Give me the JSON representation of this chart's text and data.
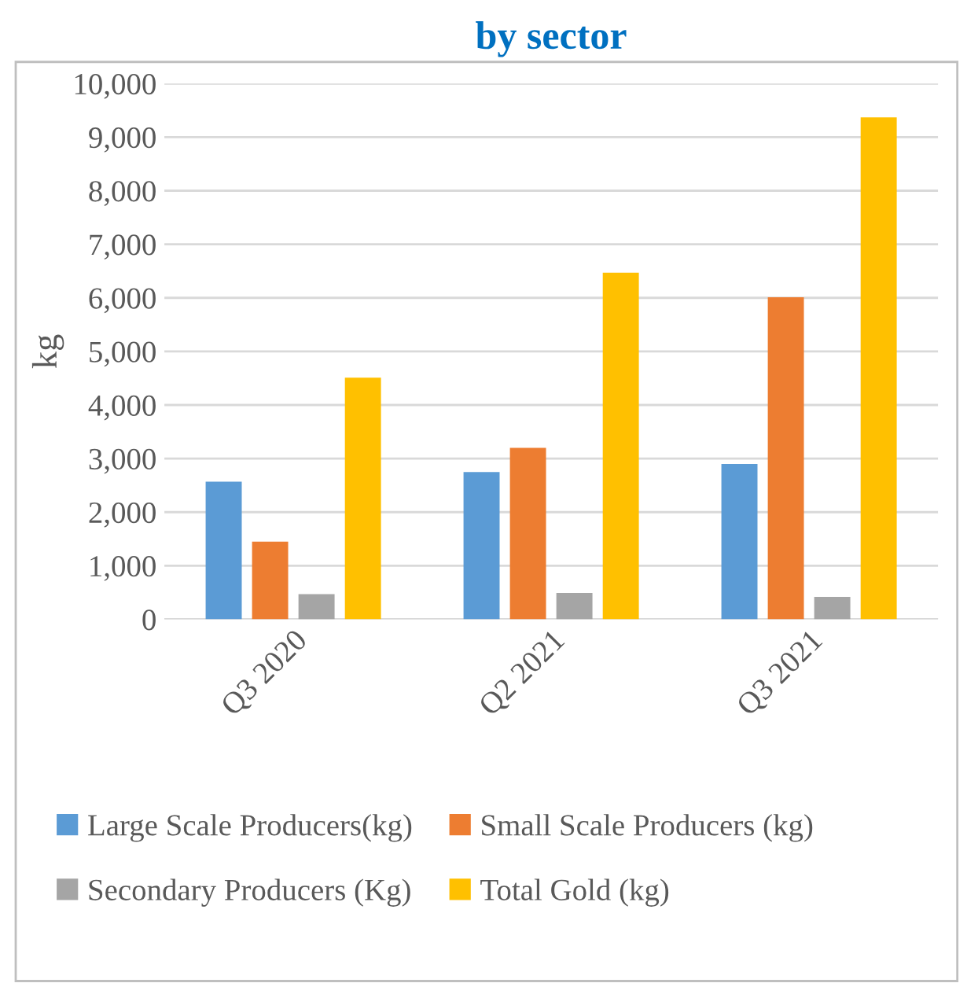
{
  "chart_data": {
    "type": "bar",
    "title": "by sector",
    "ylabel": "kg",
    "categories": [
      "Q3 2020",
      "Q2 2021",
      "Q3 2021"
    ],
    "series": [
      {
        "name": "Large Scale Producers(kg)",
        "color": "#5b9bd5",
        "values": [
          2570,
          2750,
          2900
        ]
      },
      {
        "name": "Small Scale Producers (kg)",
        "color": "#ed7d31",
        "values": [
          1450,
          3200,
          6010
        ]
      },
      {
        "name": "Secondary Producers (Kg)",
        "color": "#a5a5a5",
        "values": [
          470,
          490,
          420
        ]
      },
      {
        "name": "Total Gold (kg)",
        "color": "#ffc000",
        "values": [
          4510,
          6470,
          9370
        ]
      }
    ],
    "ylim": [
      0,
      10000
    ],
    "yticks": [
      {
        "value": 0,
        "label": "0"
      },
      {
        "value": 1000,
        "label": "1,000"
      },
      {
        "value": 2000,
        "label": "2,000"
      },
      {
        "value": 3000,
        "label": "3,000"
      },
      {
        "value": 4000,
        "label": "4,000"
      },
      {
        "value": 5000,
        "label": "5,000"
      },
      {
        "value": 6000,
        "label": "6,000"
      },
      {
        "value": 7000,
        "label": "7,000"
      },
      {
        "value": 8000,
        "label": "8,000"
      },
      {
        "value": 9000,
        "label": "9,000"
      },
      {
        "value": 10000,
        "label": "10,000"
      }
    ],
    "grid": "y",
    "legend": "bottom"
  }
}
